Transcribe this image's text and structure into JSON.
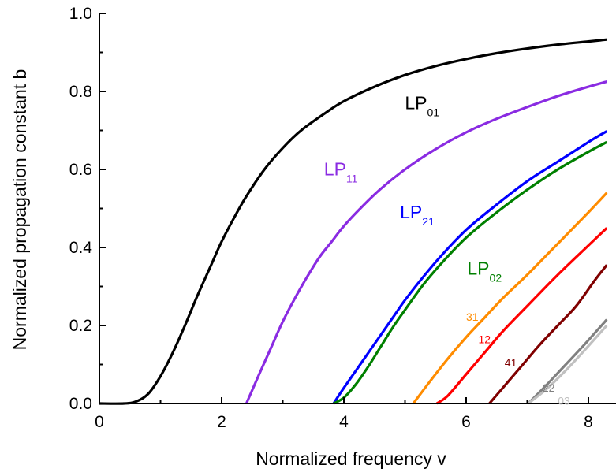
{
  "chart_data": {
    "type": "line",
    "xlabel": "Normalized frequency v",
    "ylabel": "Normalized propagation constant b",
    "xlim": [
      0,
      8.3
    ],
    "ylim": [
      0,
      1.0
    ],
    "x_ticks": [
      "0",
      "2",
      "4",
      "6",
      "8"
    ],
    "y_ticks": [
      "0.0",
      "0.2",
      "0.4",
      "0.6",
      "0.8",
      "1.0"
    ],
    "grid": false,
    "legend": "none",
    "series": [
      {
        "name": "LP01",
        "label_main": "LP",
        "label_sub": "01",
        "label_style": "large",
        "color": "#000000",
        "x": [
          0.0,
          0.4,
          0.6,
          0.8,
          1.0,
          1.2,
          1.4,
          1.6,
          1.8,
          2.0,
          2.2,
          2.4,
          2.7,
          3.0,
          3.3,
          3.7,
          4.0,
          4.5,
          5.0,
          5.5,
          6.0,
          6.5,
          7.0,
          7.5,
          8.0,
          8.3
        ],
        "y": [
          0.0,
          0.0,
          0.005,
          0.025,
          0.07,
          0.13,
          0.2,
          0.275,
          0.345,
          0.415,
          0.475,
          0.53,
          0.6,
          0.655,
          0.7,
          0.745,
          0.775,
          0.812,
          0.842,
          0.865,
          0.883,
          0.898,
          0.91,
          0.92,
          0.928,
          0.933
        ]
      },
      {
        "name": "LP11",
        "label_main": "LP",
        "label_sub": "11",
        "label_style": "large",
        "color": "#8a2be2",
        "x": [
          2.405,
          2.6,
          2.8,
          3.0,
          3.2,
          3.4,
          3.6,
          3.8,
          4.0,
          4.3,
          4.6,
          5.0,
          5.5,
          6.0,
          6.5,
          7.0,
          7.5,
          8.0,
          8.3
        ],
        "y": [
          0.0,
          0.07,
          0.14,
          0.21,
          0.27,
          0.325,
          0.375,
          0.415,
          0.455,
          0.505,
          0.55,
          0.6,
          0.652,
          0.695,
          0.73,
          0.76,
          0.788,
          0.812,
          0.825
        ]
      },
      {
        "name": "LP21",
        "label_main": "LP",
        "label_sub": "21",
        "label_style": "large",
        "color": "#0000ff",
        "x": [
          3.832,
          4.0,
          4.2,
          4.4,
          4.6,
          4.8,
          5.0,
          5.3,
          5.6,
          6.0,
          6.5,
          7.0,
          7.5,
          8.0,
          8.3
        ],
        "y": [
          0.0,
          0.04,
          0.085,
          0.13,
          0.175,
          0.22,
          0.265,
          0.325,
          0.38,
          0.445,
          0.51,
          0.57,
          0.62,
          0.67,
          0.698
        ]
      },
      {
        "name": "LP02",
        "label_main": "LP",
        "label_sub": "02",
        "label_style": "large",
        "color": "#008000",
        "x": [
          3.832,
          4.0,
          4.2,
          4.4,
          4.6,
          4.8,
          5.0,
          5.3,
          5.6,
          6.0,
          6.5,
          7.0,
          7.5,
          8.0,
          8.3
        ],
        "y": [
          0.0,
          0.015,
          0.05,
          0.095,
          0.145,
          0.195,
          0.24,
          0.305,
          0.36,
          0.425,
          0.49,
          0.548,
          0.6,
          0.645,
          0.67
        ]
      },
      {
        "name": "LP31",
        "label_main": "31",
        "label_sub": "",
        "label_style": "small",
        "color": "#ff8c00",
        "x": [
          5.136,
          5.4,
          5.7,
          6.0,
          6.3,
          6.6,
          7.0,
          7.5,
          8.0,
          8.3
        ],
        "y": [
          0.0,
          0.055,
          0.115,
          0.17,
          0.22,
          0.27,
          0.33,
          0.41,
          0.49,
          0.54
        ]
      },
      {
        "name": "LP12",
        "label_main": "12",
        "label_sub": "",
        "label_style": "small",
        "color": "#ff0000",
        "x": [
          5.52,
          5.7,
          6.0,
          6.3,
          6.6,
          7.0,
          7.5,
          8.0,
          8.3
        ],
        "y": [
          0.0,
          0.02,
          0.075,
          0.13,
          0.185,
          0.25,
          0.33,
          0.405,
          0.45
        ]
      },
      {
        "name": "LP41",
        "label_main": "41",
        "label_sub": "",
        "label_style": "small",
        "color": "#800000",
        "x": [
          6.38,
          6.6,
          6.9,
          7.2,
          7.5,
          7.8,
          8.1,
          8.3
        ],
        "y": [
          0.0,
          0.04,
          0.095,
          0.15,
          0.2,
          0.25,
          0.315,
          0.355
        ]
      },
      {
        "name": "LP22",
        "label_main": "22",
        "label_sub": "",
        "label_style": "small",
        "color": "#808080",
        "x": [
          7.016,
          7.3,
          7.6,
          7.9,
          8.1,
          8.3
        ],
        "y": [
          0.0,
          0.045,
          0.095,
          0.145,
          0.18,
          0.215
        ]
      },
      {
        "name": "LP03",
        "label_main": "03",
        "label_sub": "",
        "label_style": "small",
        "color": "#c0c0c0",
        "x": [
          7.016,
          7.3,
          7.6,
          7.9,
          8.1,
          8.3
        ],
        "y": [
          0.0,
          0.035,
          0.08,
          0.13,
          0.165,
          0.2
        ]
      }
    ]
  }
}
